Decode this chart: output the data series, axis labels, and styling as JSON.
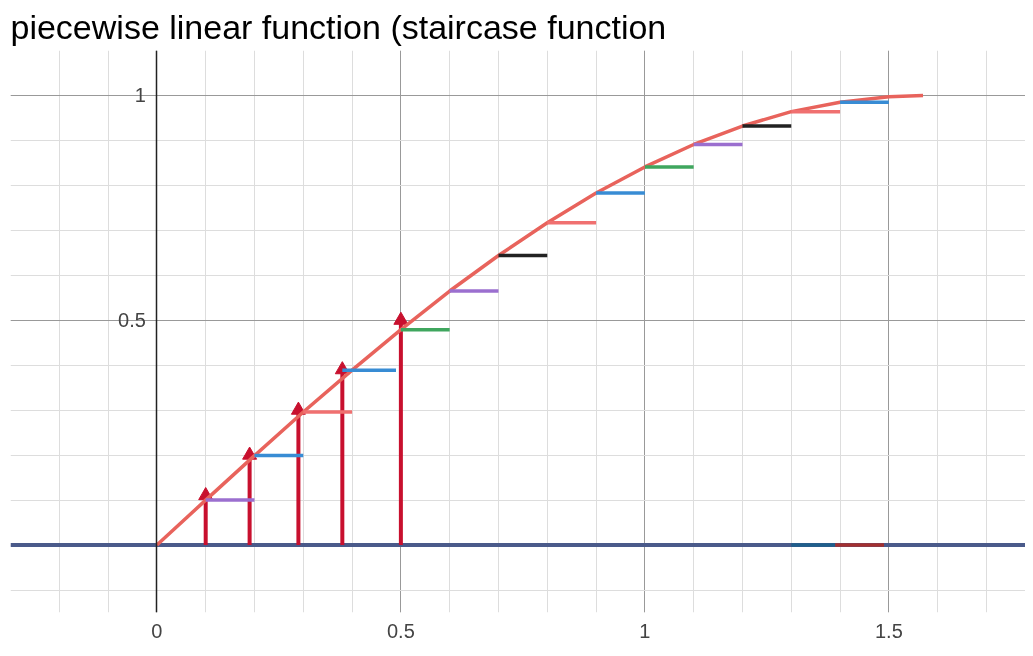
{
  "chart_data": {
    "type": "line",
    "title": "piecewise linear function (staircase function",
    "xlim": [
      -0.3,
      1.78
    ],
    "ylim": [
      -0.15,
      1.1
    ],
    "xticks": [
      0,
      0.5,
      1,
      1.5
    ],
    "yticks": [
      0.5,
      1
    ],
    "grid": true,
    "ref_lines": [
      {
        "axis": "y",
        "value": 0,
        "color": "#4a5a8a"
      }
    ],
    "marker": "none",
    "line_style": "solid",
    "series": [
      {
        "color": "#e8635c",
        "x": [
          0,
          0.1,
          0.2,
          0.3,
          0.4,
          0.5,
          0.6,
          0.7,
          0.8,
          0.9,
          1.0,
          1.1,
          1.2,
          1.3,
          1.4,
          1.5,
          1.57
        ],
        "values": [
          0,
          0.1,
          0.199,
          0.296,
          0.389,
          0.479,
          0.565,
          0.644,
          0.717,
          0.783,
          0.841,
          0.891,
          0.932,
          0.964,
          0.985,
          0.997,
          1
        ]
      },
      {
        "color": "#9b6fcf",
        "x": [
          0.1,
          0.2
        ],
        "values": [
          0.1,
          0.1
        ]
      },
      {
        "color": "#388cd4",
        "x": [
          0.2,
          0.3
        ],
        "values": [
          0.199,
          0.199
        ]
      },
      {
        "color": "#f07070",
        "x": [
          0.3,
          0.4
        ],
        "values": [
          0.296,
          0.296
        ]
      },
      {
        "color": "#388cd4",
        "x": [
          0.38,
          0.49
        ],
        "values": [
          0.389,
          0.389
        ]
      },
      {
        "color": "#3fa65e",
        "x": [
          0.5,
          0.6
        ],
        "values": [
          0.479,
          0.479
        ]
      },
      {
        "color": "#9b6fcf",
        "x": [
          0.6,
          0.7
        ],
        "values": [
          0.565,
          0.565
        ]
      },
      {
        "color": "#222222",
        "x": [
          0.7,
          0.8
        ],
        "values": [
          0.644,
          0.644
        ]
      },
      {
        "color": "#f07070",
        "x": [
          0.8,
          0.9
        ],
        "values": [
          0.717,
          0.717
        ]
      },
      {
        "color": "#388cd4",
        "x": [
          0.9,
          1.0
        ],
        "values": [
          0.783,
          0.783
        ]
      },
      {
        "color": "#3fa65e",
        "x": [
          1.0,
          1.1
        ],
        "values": [
          0.841,
          0.841
        ]
      },
      {
        "color": "#9b6fcf",
        "x": [
          1.1,
          1.2
        ],
        "values": [
          0.891,
          0.891
        ]
      },
      {
        "color": "#222222",
        "x": [
          1.2,
          1.3
        ],
        "values": [
          0.932,
          0.932
        ]
      },
      {
        "color": "#f07070",
        "x": [
          1.3,
          1.4
        ],
        "values": [
          0.964,
          0.964
        ]
      },
      {
        "color": "#388cd4",
        "x": [
          1.4,
          1.5
        ],
        "values": [
          0.985,
          0.985
        ]
      },
      {
        "color": "#1f5f8b",
        "x": [
          1.3,
          1.39
        ],
        "values": [
          0,
          0
        ]
      },
      {
        "color": "#a33030",
        "x": [
          1.39,
          1.49
        ],
        "values": [
          0,
          0
        ]
      },
      {
        "type": "lollipop",
        "marker": "triangle",
        "color": "#c8102e",
        "x": [
          0.1,
          0.19,
          0.29,
          0.38,
          0.5
        ],
        "values": [
          0.11,
          0.2,
          0.3,
          0.39,
          0.5
        ]
      }
    ]
  }
}
